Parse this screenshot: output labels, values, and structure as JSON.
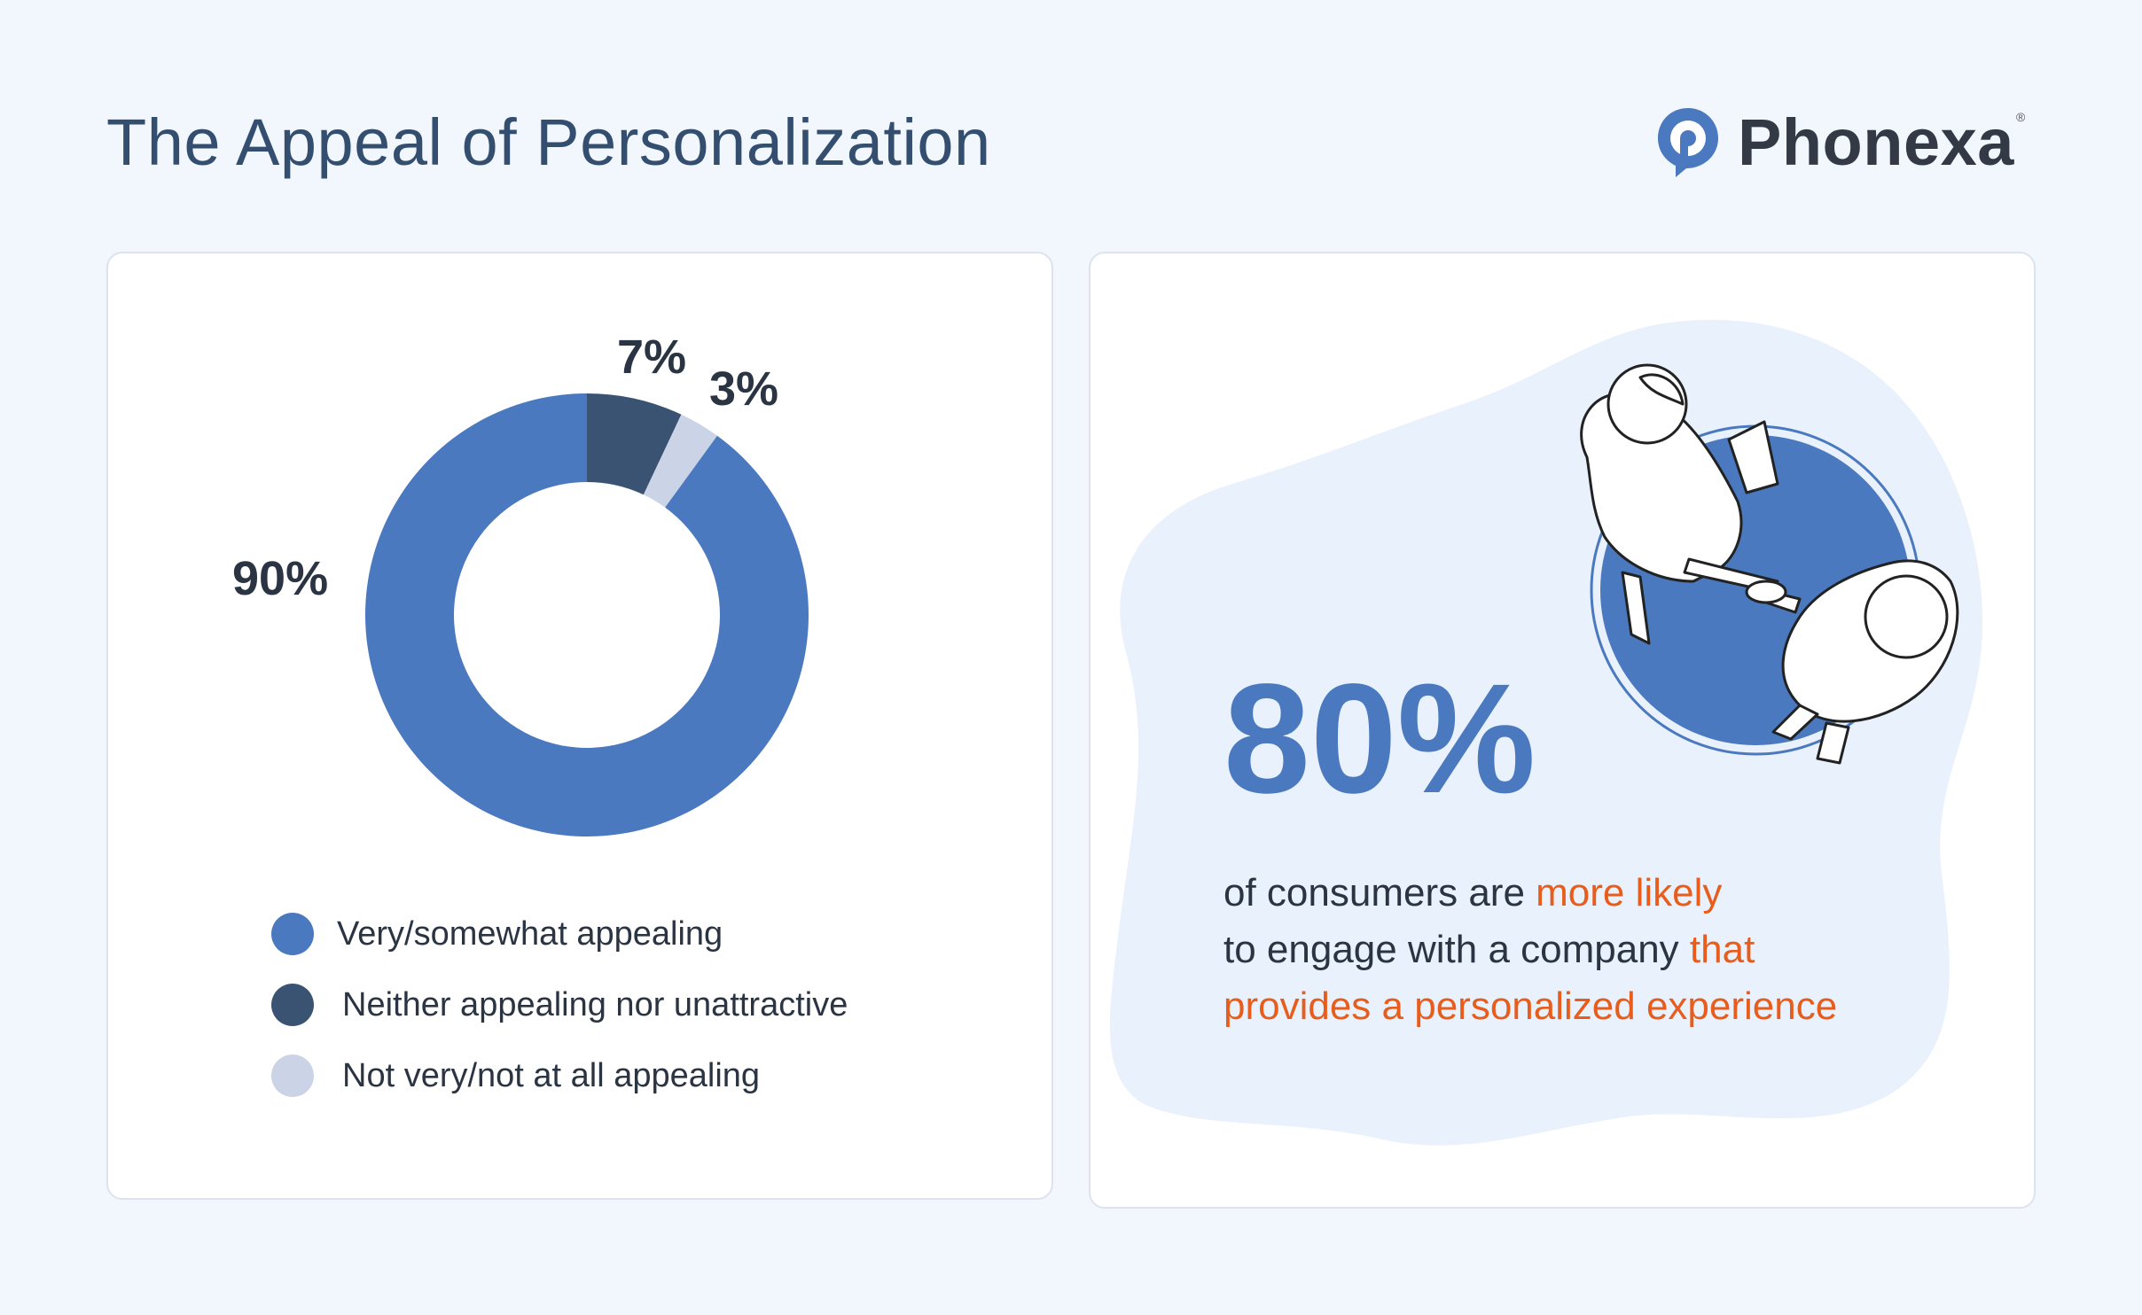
{
  "header": {
    "title": "The Appeal of Personalization",
    "logo_text": "Phonexa",
    "logo_reg": "®"
  },
  "chart_data": {
    "type": "pie",
    "donut": true,
    "categories": [
      "Very/somewhat appealing",
      "Neither appealing nor unattractive",
      "Not very/not at all appealing"
    ],
    "values": [
      90,
      7,
      3
    ],
    "value_labels": [
      "90%",
      "7%",
      "3%"
    ],
    "colors": [
      "#4a79bf",
      "#3a5373",
      "#cbd3e6"
    ],
    "legend_position": "bottom"
  },
  "stat": {
    "value": "80%",
    "line1_a": "of consumers are ",
    "line1_b": "more likely",
    "line2_a": "to engage with a company ",
    "line2_b": "that",
    "line3": "provides a personalized experience"
  },
  "colors": {
    "accent": "#4a79bf",
    "dark": "#3a5373",
    "light": "#cbd3e6",
    "highlight": "#e85d1c",
    "background": "#f2f6fd"
  }
}
